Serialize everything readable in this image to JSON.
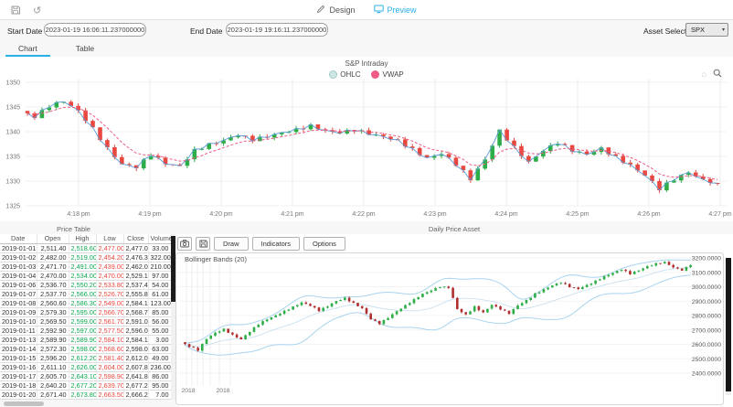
{
  "topbar": {
    "design_label": "Design",
    "preview_label": "Preview"
  },
  "glyphs": {
    "undo": "↺",
    "home": "⌂",
    "dropdown_arrow": "▾"
  },
  "controls": {
    "start_date_label": "Start Date",
    "start_date_value": "2023-01-19 16:06:11.237000000",
    "end_date_label": "End Date",
    "end_date_value": "2023-01-19 19:16:11.237000000",
    "asset_select_label": "Asset Select",
    "asset_select_value": "SPX"
  },
  "tabs": [
    {
      "label": "Chart",
      "active": true
    },
    {
      "label": "Table",
      "active": false
    }
  ],
  "section_labels": {
    "price_table": "Price Table",
    "daily_price_asset": "Daily Price Asset"
  },
  "bottom_toolbar": {
    "draw_label": "Draw",
    "indicators_label": "Indicators",
    "options_label": "Options"
  },
  "colors": {
    "accent_blue": "#2ab0e8",
    "candle_up": "#2eae49",
    "candle_down": "#e8483f",
    "table_high_green": "#0ca750",
    "table_low_red": "#e8483f",
    "vwap_pink": "#ee5b83",
    "ohlc_legend_teal": "#cfe8e6",
    "ohlc_legend_border": "#9fc9c6",
    "close_line_blue": "#5b9bd5",
    "bollinger_blue": "#a9d4ef",
    "grid": "#ededed",
    "scrollbar_dark": "#1c1c1c"
  },
  "chart_data": [
    {
      "type": "candlestick",
      "title": "S&P Intraday",
      "legend": [
        {
          "label": "OHLC",
          "color": "#cfe8e6"
        },
        {
          "label": "VWAP",
          "color": "#ee5b83"
        }
      ],
      "x_ticks": [
        "4:18 pm",
        "4:19 pm",
        "4:20 pm",
        "4:21 pm",
        "4:22 pm",
        "4:23 pm",
        "4:24 pm",
        "4:25 pm",
        "4:26 pm",
        "4:27 pm"
      ],
      "y_ticks": [
        1350,
        1345,
        1340,
        1335,
        1330,
        1325
      ],
      "ylim": [
        1325,
        1350
      ],
      "overlays": [
        "close-line",
        "vwap"
      ],
      "price_path": [
        1344.2,
        1343.0,
        1345.2,
        1346.2,
        1344.2,
        1340.6,
        1336.6,
        1333.4,
        1332.8,
        1335.4,
        1333.6,
        1333.0,
        1336.2,
        1337.4,
        1338.2,
        1339.4,
        1338.4,
        1339.0,
        1339.8,
        1340.4,
        1341.2,
        1340.2,
        1339.8,
        1340.4,
        1339.6,
        1339.0,
        1338.2,
        1336.4,
        1334.6,
        1335.6,
        1333.4,
        1330.4,
        1334.4,
        1340.2,
        1336.8,
        1333.8,
        1336.2,
        1337.8,
        1336.2,
        1335.4,
        1336.6,
        1334.8,
        1333.2,
        1331.2,
        1328.4,
        1330.4,
        1331.8,
        1330.2,
        1329.6
      ]
    },
    {
      "type": "candlestick",
      "title": "Bollinger Bands (20)",
      "x_ticks": [
        "2018",
        "2018"
      ],
      "y_ticks": [
        "3200.0000",
        "3100.0000",
        "3000.0000",
        "2900.0000",
        "2800.0000",
        "2700.0000",
        "2600.0000",
        "2500.0000",
        "2400.0000"
      ],
      "ylim": [
        2362,
        3276
      ],
      "overlays": [
        "bollinger-upper",
        "bollinger-middle",
        "bollinger-lower"
      ],
      "bollinger_window": 20,
      "price_path": [
        2615,
        2585,
        2560,
        2640,
        2680,
        2705,
        2665,
        2635,
        2690,
        2740,
        2775,
        2800,
        2830,
        2860,
        2890,
        2870,
        2835,
        2865,
        2900,
        2920,
        2885,
        2850,
        2775,
        2745,
        2785,
        2830,
        2870,
        2910,
        2950,
        2975,
        3000,
        2995,
        2845,
        2805,
        2860,
        2820,
        2875,
        2845,
        2815,
        2870,
        2905,
        2950,
        2980,
        3010,
        3030,
        3000,
        2985,
        3010,
        3040,
        3070,
        3095,
        3120,
        3090,
        3115,
        3140,
        3160,
        3170,
        3135,
        3115,
        3150
      ]
    }
  ],
  "price_table": {
    "columns": [
      "Date",
      "Open",
      "High",
      "Low",
      "Close",
      "Volume"
    ],
    "rows": [
      [
        "2019-01-01",
        "2,511.40",
        "2,518.60",
        "2,477.00",
        "2,477.00",
        "33.00"
      ],
      [
        "2019-01-02",
        "2,482.00",
        "2,519.00",
        "2,454.20",
        "2,476.30",
        "322.00"
      ],
      [
        "2019-01-03",
        "2,471.70",
        "2,491.00",
        "2,439.00",
        "2,462.00",
        "210.00"
      ],
      [
        "2019-01-04",
        "2,470.00",
        "2,534.00",
        "2,470.00",
        "2,529.10",
        "97.00"
      ],
      [
        "2019-01-06",
        "2,536.70",
        "2,550.20",
        "2,533.80",
        "2,537.40",
        "54.00"
      ],
      [
        "2019-01-07",
        "2,537.70",
        "2,566.00",
        "2,526.70",
        "2,555.80",
        "61.00"
      ],
      [
        "2019-01-08",
        "2,560.60",
        "2,586.30",
        "2,549.00",
        "2,584.10",
        "123.00"
      ],
      [
        "2019-01-09",
        "2,579.30",
        "2,595.00",
        "2,566.70",
        "2,568.70",
        "85.00"
      ],
      [
        "2019-01-10",
        "2,569.50",
        "2,599.00",
        "2,561.70",
        "2,591.00",
        "56.00"
      ],
      [
        "2019-01-11",
        "2,592.90",
        "2,597.00",
        "2,577.50",
        "2,596.00",
        "55.00"
      ],
      [
        "2019-01-13",
        "2,589.90",
        "2,589.90",
        "2,584.10",
        "2,584.10",
        "3.00"
      ],
      [
        "2019-01-14",
        "2,572.30",
        "2,598.00",
        "2,568.60",
        "2,598.00",
        "63.00"
      ],
      [
        "2019-01-15",
        "2,596.20",
        "2,612.20",
        "2,581.40",
        "2,612.00",
        "49.00"
      ],
      [
        "2019-01-16",
        "2,611.10",
        "2,626.00",
        "2,604.00",
        "2,607.80",
        "236.00"
      ],
      [
        "2019-01-17",
        "2,605.70",
        "2,643.10",
        "2,598.90",
        "2,641.80",
        "86.00"
      ],
      [
        "2019-01-18",
        "2,640.20",
        "2,677.20",
        "2,639.70",
        "2,677.20",
        "95.00"
      ],
      [
        "2019-01-20",
        "2,671.40",
        "2,673.80",
        "2,663.50",
        "2,666.20",
        "7.00"
      ]
    ]
  }
}
